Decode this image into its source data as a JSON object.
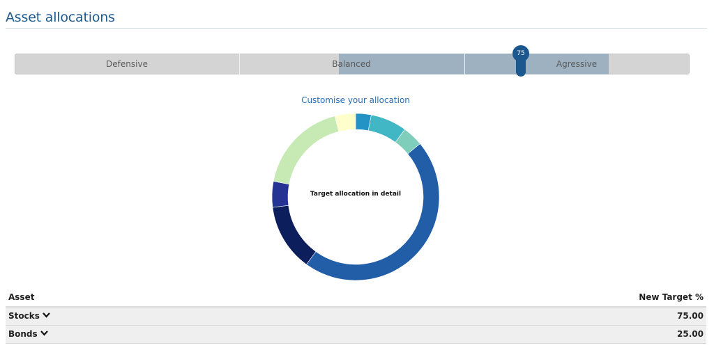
{
  "header": {
    "title": "Asset allocations"
  },
  "risk_slider": {
    "options": [
      "Defensive",
      "Balanced",
      "Agressive"
    ],
    "value": 75,
    "value_label": "75",
    "colors": {
      "track": "#d4d4d4",
      "fill": "#9eb1c0",
      "handle": "#1c578d"
    }
  },
  "allocation": {
    "customise_label": "Customise your allocation",
    "center_label": "Target allocation in detail"
  },
  "chart_data": {
    "type": "pie",
    "segments": [
      {
        "value": 3,
        "color": "#2393c6"
      },
      {
        "value": 7,
        "color": "#41b6c4"
      },
      {
        "value": 4,
        "color": "#7fcdbb"
      },
      {
        "value": 46,
        "color": "#225ea8"
      },
      {
        "value": 13,
        "color": "#0c1f5c"
      },
      {
        "value": 5,
        "color": "#253494"
      },
      {
        "value": 18,
        "color": "#c7e9b4"
      },
      {
        "value": 4,
        "color": "#ffffcc"
      }
    ]
  },
  "table": {
    "headers": {
      "asset": "Asset",
      "target": "New Target %"
    },
    "rows": [
      {
        "asset": "Stocks",
        "target": "75.00"
      },
      {
        "asset": "Bonds",
        "target": "25.00"
      }
    ]
  }
}
